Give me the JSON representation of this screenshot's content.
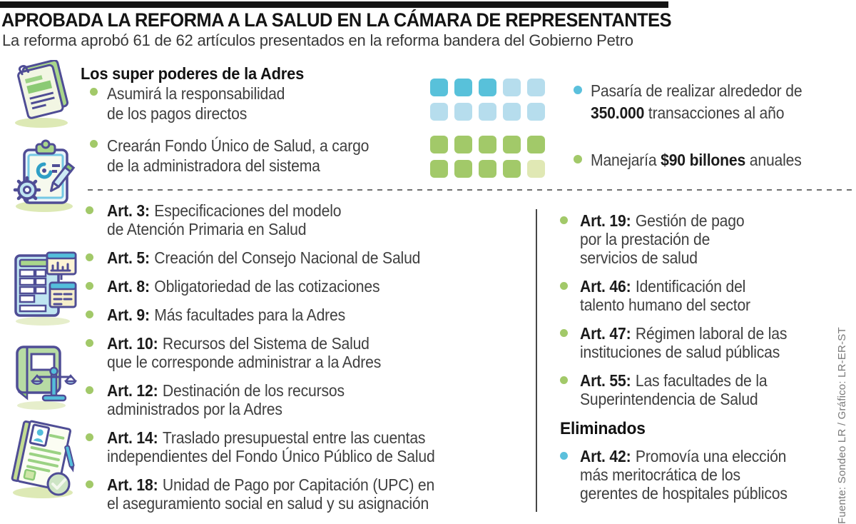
{
  "header": {
    "title": "APROBADA LA REFORMA A LA SALUD EN LA CÁMARA DE REPRESENTANTES",
    "subtitle": "La reforma aprobó 61 de 62 artículos presentados en la reforma bandera del Gobierno Petro"
  },
  "adres": {
    "heading": "Los super poderes de la Adres",
    "bullets": [
      {
        "lines": [
          "Asumirá la responsabilidad",
          "de los pagos directos"
        ]
      },
      {
        "lines": [
          "Crearán Fondo Único de Salud, a cargo",
          "de la administradora del sistema"
        ]
      }
    ]
  },
  "stats": {
    "transactions": {
      "line1": "Pasaría de realizar alrededor de",
      "bold": "350.000",
      "rest": " transacciones al año"
    },
    "budget": {
      "pre": "Manejaría ",
      "bold": "$90 billones",
      "rest": " anuales"
    }
  },
  "pictogram": {
    "blue_rows": [
      [
        "square_blue",
        "square_blue",
        "square_blue",
        "square_blue_light",
        "square_blue_light"
      ],
      [
        "square_blue_light",
        "square_blue_light",
        "square_blue_light",
        "square_blue_light",
        "square_blue_light"
      ]
    ],
    "green_rows": [
      [
        "square_green",
        "square_green",
        "square_green",
        "square_green",
        "square_green"
      ],
      [
        "square_green",
        "square_green",
        "square_green",
        "square_green",
        "square_green_pale"
      ]
    ]
  },
  "colors": {
    "square_blue": "#58c1da",
    "square_blue_light": "#b6dded",
    "square_green": "#a2c969",
    "square_green_pale": "#e0e8b4",
    "bullet_green": "#a2c969",
    "bullet_blue": "#5bc0dc",
    "top_bar": "#141414",
    "divider": "#6f6f6f",
    "source_text": "#7a7a7a"
  },
  "articles": {
    "left": [
      {
        "num": "Art. 3:",
        "lines": [
          "Especificaciones del modelo",
          "de Atención Primaria en Salud"
        ]
      },
      {
        "num": "Art. 5:",
        "lines": [
          "Creación del Consejo Nacional de Salud"
        ]
      },
      {
        "num": "Art. 8:",
        "lines": [
          "Obligatoriedad de las cotizaciones"
        ]
      },
      {
        "num": "Art. 9:",
        "lines": [
          "Más facultades para la Adres"
        ]
      },
      {
        "num": "Art. 10:",
        "lines": [
          "Recursos del Sistema de Salud",
          "que le corresponde administrar a la Adres"
        ]
      },
      {
        "num": "Art. 12:",
        "lines": [
          "Destinación de los recursos",
          "administrados por la Adres"
        ]
      },
      {
        "num": "Art. 14:",
        "lines": [
          "Traslado presupuestal entre las cuentas",
          "independientes del Fondo Único Público de Salud"
        ]
      },
      {
        "num": "Art. 18:",
        "lines": [
          "Unidad de Pago por Capitación (UPC) en",
          "el aseguramiento social en salud y su asignación"
        ]
      }
    ],
    "right": [
      {
        "num": "Art. 19:",
        "lines": [
          "Gestión de pago",
          "por la prestación de",
          "servicios de salud"
        ]
      },
      {
        "num": "Art. 46:",
        "lines": [
          "Identificación del",
          "talento humano del sector"
        ]
      },
      {
        "num": "Art. 47:",
        "lines": [
          "Régimen laboral de las",
          "instituciones de salud públicas"
        ]
      },
      {
        "num": "Art. 55:",
        "lines": [
          "Las facultades de la",
          "Superintendencia de Salud"
        ]
      }
    ]
  },
  "eliminados": {
    "heading": "Eliminados",
    "item": {
      "num": "Art. 42:",
      "lines": [
        "Promovía una elección",
        "más meritocrática de los",
        "gerentes de hospitales públicos"
      ]
    }
  },
  "source": "Fuente: Sondeo LR / Gráfico: LR-ER-ST",
  "icons": {
    "icon1": "report-document-icon",
    "icon2": "clipboard-checklist-icon",
    "icon3": "spreadsheet-chart-icon",
    "icon4": "law-book-scales-icon",
    "icon5": "certificate-check-icon"
  }
}
